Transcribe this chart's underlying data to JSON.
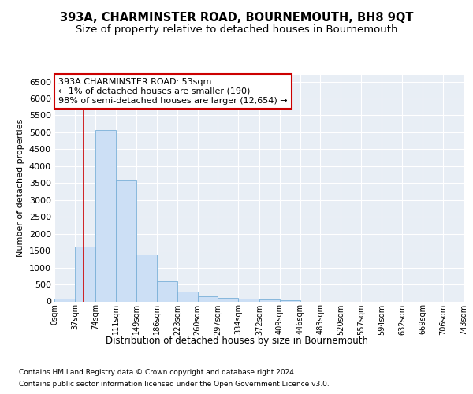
{
  "title1": "393A, CHARMINSTER ROAD, BOURNEMOUTH, BH8 9QT",
  "title2": "Size of property relative to detached houses in Bournemouth",
  "xlabel": "Distribution of detached houses by size in Bournemouth",
  "ylabel": "Number of detached properties",
  "footnote1": "Contains HM Land Registry data © Crown copyright and database right 2024.",
  "footnote2": "Contains public sector information licensed under the Open Government Licence v3.0.",
  "annotation_line1": "393A CHARMINSTER ROAD: 53sqm",
  "annotation_line2": "← 1% of detached houses are smaller (190)",
  "annotation_line3": "98% of semi-detached houses are larger (12,654) →",
  "bar_color": "#ccdff5",
  "bar_edge_color": "#7ab0d8",
  "vline_color": "#cc0000",
  "vline_x": 53,
  "annotation_box_edge_color": "#cc0000",
  "bin_edges": [
    0,
    37,
    74,
    111,
    149,
    186,
    223,
    260,
    297,
    334,
    372,
    409,
    446,
    483,
    520,
    557,
    594,
    632,
    669,
    706,
    743
  ],
  "bin_heights": [
    75,
    1620,
    5080,
    3580,
    1390,
    600,
    290,
    150,
    110,
    75,
    50,
    35,
    0,
    0,
    0,
    0,
    0,
    0,
    0,
    0
  ],
  "ylim": [
    0,
    6700
  ],
  "yticks": [
    0,
    500,
    1000,
    1500,
    2000,
    2500,
    3000,
    3500,
    4000,
    4500,
    5000,
    5500,
    6000,
    6500
  ],
  "fig_bg_color": "#ffffff",
  "plot_bg_color": "#e8eef5",
  "grid_color": "#ffffff",
  "title1_fontsize": 10.5,
  "title2_fontsize": 9.5,
  "ylabel_fontsize": 8,
  "xlabel_fontsize": 8.5,
  "ytick_fontsize": 8,
  "xtick_fontsize": 7,
  "footnote_fontsize": 6.5,
  "annotation_fontsize": 8
}
